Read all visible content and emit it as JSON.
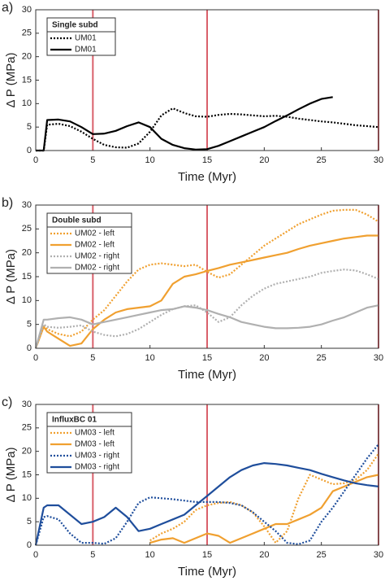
{
  "chart_data": [
    {
      "type": "line",
      "label": "a)",
      "legend_title": "Single subd",
      "xlabel": "Time (Myr)",
      "ylabel": "Δ P (MPa)",
      "x": [
        0,
        0.7,
        1,
        2,
        3,
        4,
        5,
        6,
        7,
        8,
        9,
        10,
        11,
        12,
        13,
        14,
        15,
        16,
        17,
        18,
        19,
        20,
        21,
        22,
        23,
        24,
        25,
        26,
        27,
        28,
        29,
        30
      ],
      "series": [
        {
          "name": "UM01",
          "color": "#000000",
          "style": "dotted",
          "values": [
            0,
            0,
            5.5,
            5.7,
            5.2,
            4,
            2.5,
            1.2,
            0.7,
            0.6,
            1.5,
            4,
            7.5,
            9,
            8,
            7.3,
            7.2,
            7.6,
            7.8,
            7.7,
            7.5,
            7.3,
            7.4,
            7.2,
            6.8,
            6.5,
            6.2,
            6,
            5.7,
            5.4,
            5.2,
            5
          ]
        },
        {
          "name": "DM01",
          "color": "#000000",
          "style": "solid",
          "values": [
            0,
            0,
            6.5,
            6.6,
            6.2,
            5,
            3.5,
            3.6,
            4.2,
            5.2,
            6,
            5,
            2.5,
            1.2,
            0.5,
            0.2,
            0.3,
            1,
            2,
            3,
            4,
            5,
            6.3,
            7.5,
            8.8,
            10,
            11,
            11.4,
            null,
            null,
            null,
            null
          ]
        }
      ],
      "vlines": [
        5,
        15,
        30
      ],
      "vline_color": "#d9606a",
      "xlim": [
        0,
        30
      ],
      "ylim": [
        0,
        30
      ],
      "xticks": [
        0,
        5,
        10,
        15,
        20,
        25,
        30
      ],
      "yticks": [
        0,
        5,
        10,
        15,
        20,
        25,
        30
      ],
      "grid": false
    },
    {
      "type": "line",
      "label": "b)",
      "legend_title": "Double subd",
      "xlabel": "Time (Myr)",
      "ylabel": "Δ P (MPa)",
      "x": [
        0,
        0.7,
        1,
        2,
        3,
        4,
        5,
        6,
        7,
        8,
        9,
        10,
        11,
        12,
        13,
        14,
        15,
        16,
        17,
        18,
        19,
        20,
        21,
        22,
        23,
        24,
        25,
        26,
        27,
        28,
        29,
        30
      ],
      "series": [
        {
          "name": "UM02 - left",
          "color": "#f0a030",
          "style": "dotted",
          "values": [
            0,
            5,
            4,
            3,
            2.5,
            3.5,
            6,
            8,
            11,
            14,
            16.5,
            17.5,
            17.8,
            17.5,
            17.2,
            17.5,
            16,
            14.8,
            15.5,
            17.5,
            19.5,
            21.5,
            23,
            24.5,
            26,
            27,
            28,
            28.8,
            29,
            29,
            28,
            26.5
          ]
        },
        {
          "name": "DM02 - left",
          "color": "#f0a030",
          "style": "solid",
          "values": [
            0,
            4.5,
            3.5,
            2,
            0.5,
            1,
            4,
            6,
            7.5,
            8.2,
            8.5,
            8.8,
            10,
            13.5,
            15,
            15.5,
            16.2,
            16.8,
            17.5,
            18,
            18.5,
            19,
            19.5,
            20,
            20.8,
            21.5,
            22,
            22.5,
            23,
            23.3,
            23.6,
            23.6
          ]
        },
        {
          "name": "UM02 - right",
          "color": "#b0b0b0",
          "style": "dotted",
          "values": [
            0,
            5,
            4.5,
            4.3,
            4.5,
            4.8,
            3.5,
            2.8,
            2.5,
            3,
            4,
            5.5,
            7,
            8.2,
            8.8,
            9,
            7.5,
            5.5,
            6.5,
            9,
            11,
            12.5,
            13.5,
            14,
            14.5,
            15,
            15.8,
            16.2,
            16.5,
            16.3,
            15.5,
            14.5
          ]
        },
        {
          "name": "DM02 - right",
          "color": "#b0b0b0",
          "style": "solid",
          "values": [
            0,
            6,
            6,
            6.3,
            6.5,
            6,
            5,
            5.5,
            6,
            6.5,
            7,
            7.5,
            8,
            8.2,
            8.8,
            8.5,
            8,
            7.2,
            6.5,
            5.5,
            5,
            4.5,
            4.2,
            4.2,
            4.3,
            4.5,
            5,
            5.8,
            6.5,
            7.5,
            8.5,
            9
          ]
        }
      ],
      "vlines": [
        5,
        15,
        30
      ],
      "vline_color": "#d9606a",
      "xlim": [
        0,
        30
      ],
      "ylim": [
        0,
        30
      ],
      "xticks": [
        0,
        5,
        10,
        15,
        20,
        25,
        30
      ],
      "yticks": [
        0,
        5,
        10,
        15,
        20,
        25,
        30
      ],
      "grid": false
    },
    {
      "type": "line",
      "label": "c)",
      "legend_title": "InfluxBC 01",
      "xlabel": "Time (Myr)",
      "ylabel": "Δ P (MPa)",
      "x": [
        0,
        0.7,
        1,
        2,
        3,
        4,
        5,
        6,
        7,
        8,
        9,
        10,
        11,
        12,
        13,
        14,
        15,
        16,
        17,
        18,
        19,
        20,
        21,
        22,
        23,
        24,
        25,
        26,
        27,
        28,
        29,
        30
      ],
      "series": [
        {
          "name": "UM03 - left",
          "color": "#f0a030",
          "style": "dotted",
          "values": [
            null,
            null,
            null,
            null,
            null,
            null,
            null,
            null,
            null,
            null,
            null,
            1,
            2.5,
            3.5,
            5,
            7.5,
            8.5,
            9,
            9.2,
            8.5,
            7,
            4,
            0.5,
            3,
            10,
            15,
            14,
            13,
            13.2,
            14,
            16,
            19.5
          ]
        },
        {
          "name": "DM03 - left",
          "color": "#f0a030",
          "style": "solid",
          "values": [
            null,
            null,
            null,
            null,
            null,
            null,
            null,
            null,
            null,
            null,
            null,
            0.5,
            1.2,
            1.5,
            0.5,
            1.5,
            2.5,
            2,
            0.5,
            1.5,
            2.5,
            3.5,
            4.5,
            4.5,
            5.5,
            6.5,
            8,
            11.5,
            12.5,
            13.5,
            14.5,
            15
          ]
        },
        {
          "name": "UM03 - right",
          "color": "#1f4e9c",
          "style": "dotted",
          "values": [
            0,
            6,
            6.2,
            5.5,
            2.5,
            0.5,
            0.5,
            0.3,
            1.5,
            5,
            9,
            10.2,
            10,
            9.8,
            9.5,
            9.2,
            9.2,
            9.2,
            9,
            8.5,
            7,
            5,
            3,
            0.5,
            0.2,
            1,
            5,
            8,
            11.5,
            15,
            18.5,
            21.5
          ]
        },
        {
          "name": "DM03 - right",
          "color": "#1f4e9c",
          "style": "solid",
          "values": [
            0,
            8,
            8.5,
            8.5,
            6.5,
            4.5,
            5,
            6,
            8,
            6,
            3,
            3.5,
            4.5,
            5.5,
            6.5,
            8.5,
            10.5,
            12.5,
            14.5,
            16,
            17,
            17.5,
            17.3,
            17,
            16.5,
            16,
            15.2,
            14.5,
            13.8,
            13.2,
            12.8,
            12.5
          ]
        }
      ],
      "vlines": [
        5,
        15,
        30
      ],
      "vline_color": "#d9606a",
      "xlim": [
        0,
        30
      ],
      "ylim": [
        0,
        30
      ],
      "xticks": [
        0,
        5,
        10,
        15,
        20,
        25,
        30
      ],
      "yticks": [
        0,
        5,
        10,
        15,
        20,
        25,
        30
      ],
      "grid": false
    }
  ]
}
